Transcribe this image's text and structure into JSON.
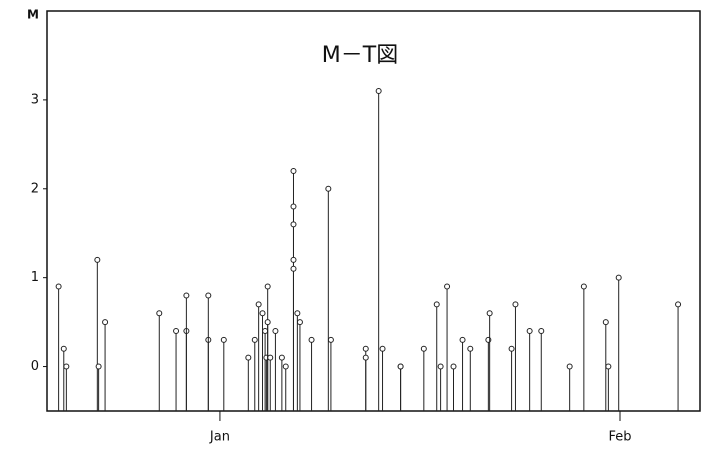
{
  "chart_data": {
    "type": "stem",
    "title": "M－T図",
    "y_label": "M",
    "x": [
      -12.5,
      -12.1,
      -11.9,
      -9.5,
      -9.4,
      -8.9,
      -4.7,
      -3.4,
      -2.6,
      -2.6,
      -0.9,
      -0.9,
      0.3,
      2.2,
      2.7,
      3.0,
      3.3,
      3.5,
      3.6,
      3.7,
      3.7,
      3.9,
      4.3,
      4.8,
      5.1,
      5.7,
      5.7,
      5.7,
      5.7,
      5.7,
      6.0,
      6.2,
      7.1,
      8.4,
      8.6,
      11.3,
      11.3,
      12.3,
      12.6,
      14.0,
      14.0,
      15.8,
      16.8,
      17.1,
      17.6,
      18.1,
      18.8,
      19.4,
      20.8,
      20.9,
      22.6,
      22.9,
      24.0,
      24.9,
      27.1,
      28.2,
      29.9,
      30.1,
      30.9,
      35.5
    ],
    "values": [
      0.9,
      0.2,
      0.0,
      1.2,
      0.0,
      0.5,
      0.6,
      0.4,
      0.4,
      0.8,
      0.3,
      0.8,
      0.3,
      0.1,
      0.3,
      0.7,
      0.6,
      0.4,
      0.1,
      0.9,
      0.5,
      0.1,
      0.4,
      0.1,
      0.0,
      2.2,
      1.8,
      1.6,
      1.2,
      1.1,
      0.6,
      0.5,
      0.3,
      2.0,
      0.3,
      0.2,
      0.1,
      3.1,
      0.2,
      0.0,
      0.0,
      0.2,
      0.7,
      0.0,
      0.9,
      0.0,
      0.3,
      0.2,
      0.3,
      0.6,
      0.2,
      0.7,
      0.4,
      0.4,
      0.0,
      0.9,
      0.5,
      0.0,
      1.0,
      0.7
    ],
    "color": "#222222",
    "xlim": [
      -13.4,
      37.2
    ],
    "xticks": [
      {
        "value": 0,
        "label": "Jan"
      },
      {
        "value": 31,
        "label": "Feb"
      }
    ],
    "ylim": [
      -0.5,
      4.0
    ],
    "yticks": [
      0,
      1,
      2,
      3
    ]
  }
}
